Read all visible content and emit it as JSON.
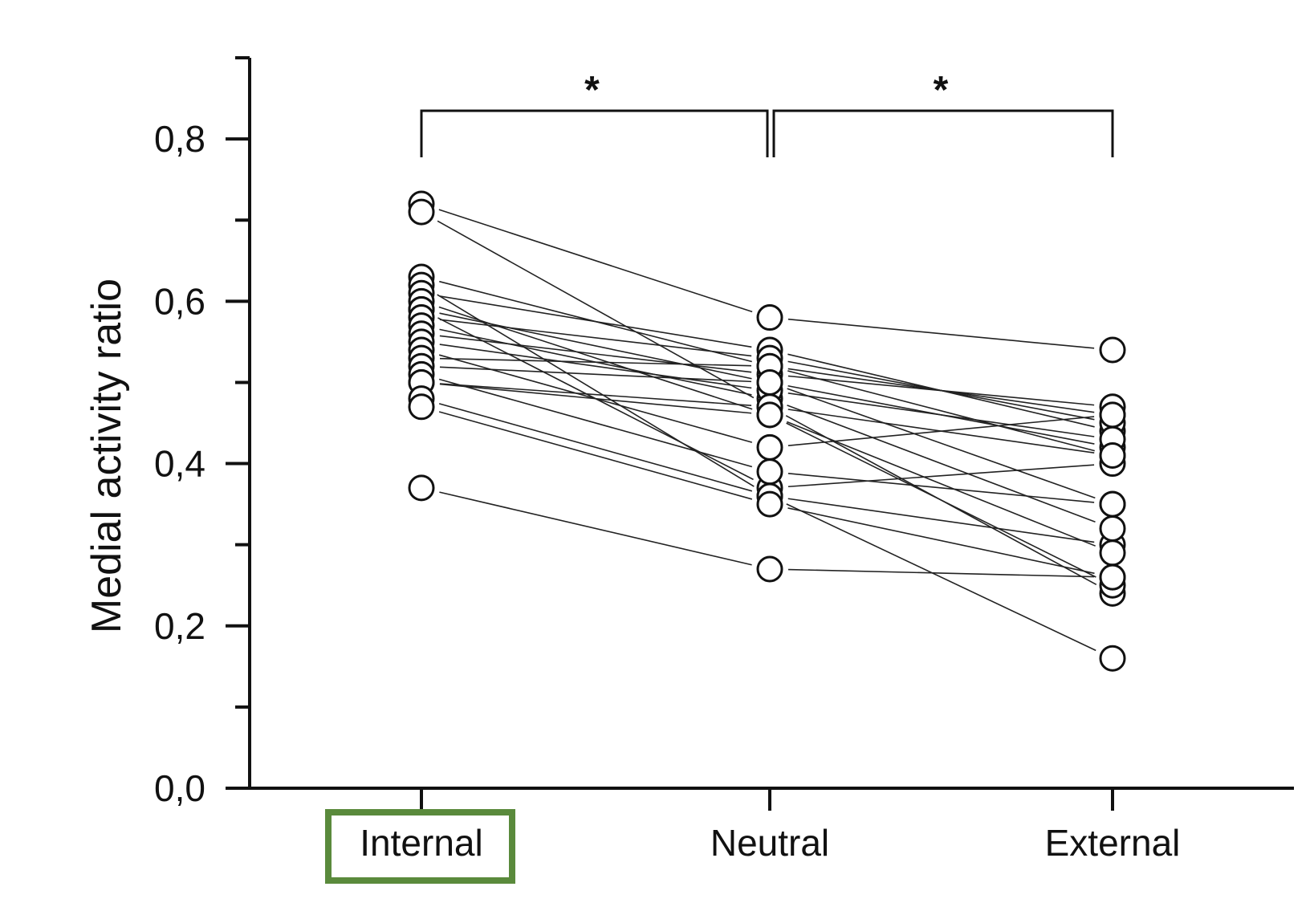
{
  "chart_data": {
    "type": "scatter",
    "subtype": "paired-points",
    "title": "",
    "xlabel": "",
    "ylabel": "Medial activity ratio",
    "categories": [
      "Internal",
      "Neutral",
      "External"
    ],
    "ylim": [
      0.0,
      0.9
    ],
    "yticks": [
      {
        "value": 0.0,
        "label": "0,0"
      },
      {
        "value": 0.2,
        "label": "0,2"
      },
      {
        "value": 0.4,
        "label": "0,4"
      },
      {
        "value": 0.6,
        "label": "0,6"
      },
      {
        "value": 0.8,
        "label": "0,8"
      }
    ],
    "y_minor_ticks": [
      0.1,
      0.3,
      0.5,
      0.7,
      0.9
    ],
    "grid": false,
    "highlighted_category": "Internal",
    "highlight_color": "#5a8a3c",
    "significance": [
      {
        "from": "Internal",
        "to": "Neutral",
        "label": "*"
      },
      {
        "from": "Neutral",
        "to": "External",
        "label": "*"
      }
    ],
    "subjects": [
      [
        0.72,
        0.58,
        0.54
      ],
      [
        0.71,
        0.47,
        0.41
      ],
      [
        0.63,
        0.52,
        0.46
      ],
      [
        0.62,
        0.36,
        0.3
      ],
      [
        0.61,
        0.54,
        0.44
      ],
      [
        0.6,
        0.46,
        0.29
      ],
      [
        0.59,
        0.5,
        0.42
      ],
      [
        0.59,
        0.37,
        0.4
      ],
      [
        0.58,
        0.53,
        0.45
      ],
      [
        0.57,
        0.48,
        0.32
      ],
      [
        0.56,
        0.51,
        0.47
      ],
      [
        0.55,
        0.49,
        0.43
      ],
      [
        0.54,
        0.42,
        0.46
      ],
      [
        0.53,
        0.52,
        0.41
      ],
      [
        0.52,
        0.5,
        0.35
      ],
      [
        0.51,
        0.39,
        0.35
      ],
      [
        0.5,
        0.47,
        0.24
      ],
      [
        0.5,
        0.46,
        0.25
      ],
      [
        0.48,
        0.36,
        0.16
      ],
      [
        0.47,
        0.35,
        0.26
      ],
      [
        0.37,
        0.27,
        0.26
      ]
    ]
  }
}
